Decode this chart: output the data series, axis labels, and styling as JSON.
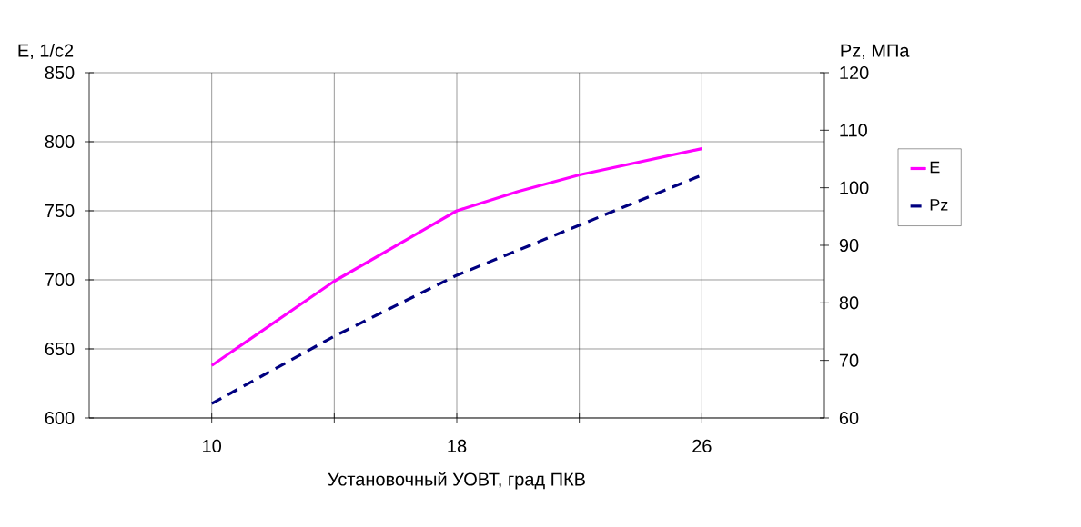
{
  "chart_data": {
    "type": "line",
    "xlabel": "Установочный УОВТ, град ПКВ",
    "ylabel": "E, 1/c2",
    "y2label": "Pz, МПа",
    "xlim": [
      6,
      30
    ],
    "xticks": [
      10,
      {
        "value": 14,
        "label": null
      },
      18,
      {
        "value": 22,
        "label": null
      },
      26
    ],
    "ylim": [
      600,
      850
    ],
    "yticks": [
      600,
      650,
      700,
      750,
      800,
      850
    ],
    "y2lim": [
      60,
      120
    ],
    "y2ticks": [
      60,
      70,
      80,
      90,
      100,
      110,
      120
    ],
    "grid": true,
    "legend": "right",
    "series": [
      {
        "name": "E",
        "color": "#ff00ff",
        "x": [
          10,
          14,
          18,
          20,
          22,
          26
        ],
        "values": [
          638,
          699,
          750,
          764,
          776,
          795
        ],
        "line_style": "solid"
      },
      {
        "name": "Pz",
        "color": "#000080",
        "axis": "y2",
        "x": [
          10,
          14,
          18,
          22,
          26
        ],
        "values": [
          62.5,
          74.2,
          84.8,
          93.5,
          102.2
        ],
        "line_style": "dashed"
      }
    ]
  }
}
